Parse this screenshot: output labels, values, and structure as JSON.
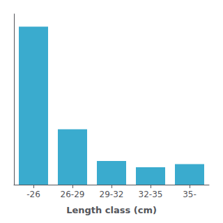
{
  "chart_data": {
    "type": "bar",
    "xlabel": "Length class (cm)",
    "categories": [
      "-26",
      "26-29",
      "29-32",
      "32-35",
      "35-"
    ],
    "values": [
      100,
      35,
      15,
      11,
      13
    ],
    "color": "#3aabce",
    "ylim": [
      0,
      108
    ],
    "grid": false,
    "tick_labels": "x"
  }
}
